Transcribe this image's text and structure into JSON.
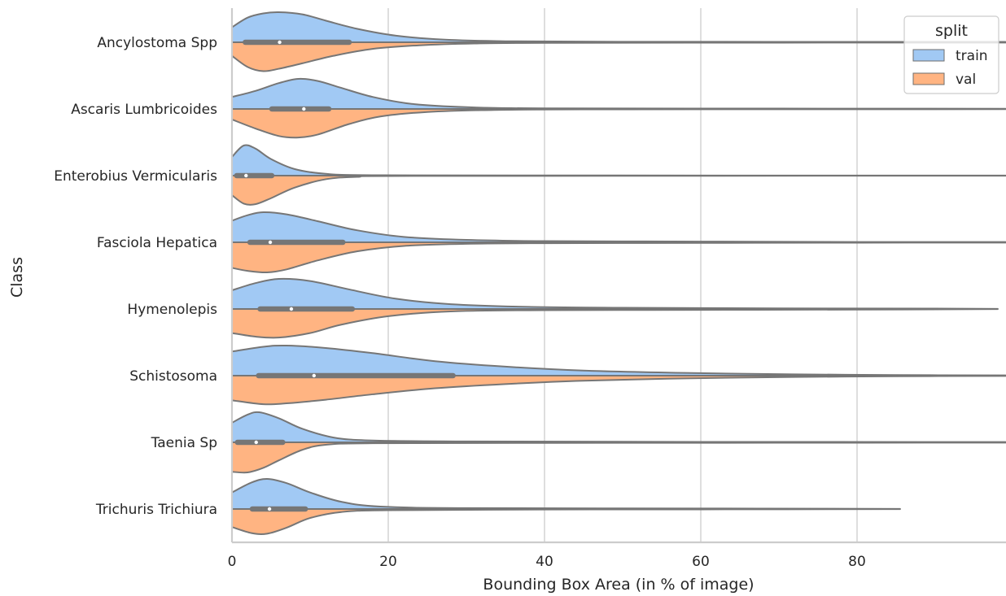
{
  "chart_data": {
    "type": "violin",
    "orientation": "horizontal",
    "split": true,
    "xlabel": "Bounding Box Area (in % of image)",
    "ylabel": "Class",
    "xlim": [
      0,
      99
    ],
    "x_ticks": [
      0,
      20,
      40,
      60,
      80
    ],
    "grid": "vertical",
    "legend": {
      "title": "split",
      "position": "top-right",
      "entries": [
        {
          "name": "train",
          "color": "#a1c9f4"
        },
        {
          "name": "val",
          "color": "#ffb482"
        }
      ]
    },
    "categories": [
      "Ancylostoma Spp",
      "Ascaris Lumbricoides",
      "Enterobius Vermicularis",
      "Fasciola Hepatica",
      "Hymenolepis",
      "Schistosoma",
      "Taenia Sp",
      "Trichuris Trichiura"
    ],
    "series": [
      {
        "name": "train",
        "color": "#a1c9f4",
        "density": [
          [
            [
              0,
              0.5
            ],
            [
              2,
              0.82
            ],
            [
              4,
              0.96
            ],
            [
              6,
              1.0
            ],
            [
              9,
              0.93
            ],
            [
              12,
              0.72
            ],
            [
              16,
              0.45
            ],
            [
              21,
              0.22
            ],
            [
              27,
              0.09
            ],
            [
              35,
              0.035
            ],
            [
              50,
              0.018
            ],
            [
              70,
              0.015
            ],
            [
              99,
              0.012
            ]
          ],
          [
            [
              0,
              0.4
            ],
            [
              3,
              0.6
            ],
            [
              6,
              0.86
            ],
            [
              8.5,
              1.0
            ],
            [
              11,
              0.93
            ],
            [
              14,
              0.7
            ],
            [
              18,
              0.4
            ],
            [
              23,
              0.17
            ],
            [
              30,
              0.06
            ],
            [
              40,
              0.02
            ],
            [
              70,
              0.012
            ],
            [
              99,
              0.008
            ]
          ],
          [
            [
              0,
              0.62
            ],
            [
              1.5,
              1.0
            ],
            [
              3,
              0.9
            ],
            [
              5,
              0.55
            ],
            [
              8,
              0.22
            ],
            [
              12,
              0.06
            ],
            [
              18,
              0.015
            ],
            [
              40,
              0.006
            ],
            [
              99,
              0.004
            ]
          ],
          [
            [
              0,
              0.72
            ],
            [
              2,
              0.9
            ],
            [
              4,
              1.0
            ],
            [
              7,
              0.93
            ],
            [
              11,
              0.7
            ],
            [
              16,
              0.4
            ],
            [
              22,
              0.18
            ],
            [
              30,
              0.08
            ],
            [
              40,
              0.04
            ],
            [
              60,
              0.025
            ],
            [
              80,
              0.01
            ],
            [
              99,
              0.01
            ]
          ],
          [
            [
              0,
              0.62
            ],
            [
              3,
              0.86
            ],
            [
              6,
              1.0
            ],
            [
              10,
              0.93
            ],
            [
              15,
              0.65
            ],
            [
              21,
              0.34
            ],
            [
              28,
              0.16
            ],
            [
              38,
              0.07
            ],
            [
              50,
              0.04
            ],
            [
              70,
              0.02
            ],
            [
              90,
              0.012
            ],
            [
              98,
              0.004
            ]
          ],
          [
            [
              0,
              0.8
            ],
            [
              4,
              0.96
            ],
            [
              7,
              1.0
            ],
            [
              12,
              0.92
            ],
            [
              18,
              0.75
            ],
            [
              26,
              0.48
            ],
            [
              35,
              0.3
            ],
            [
              45,
              0.17
            ],
            [
              58,
              0.09
            ],
            [
              72,
              0.045
            ],
            [
              85,
              0.02
            ],
            [
              99,
              0.01
            ]
          ],
          [
            [
              0,
              0.65
            ],
            [
              2,
              0.92
            ],
            [
              3.5,
              1.0
            ],
            [
              6,
              0.8
            ],
            [
              9,
              0.45
            ],
            [
              13,
              0.16
            ],
            [
              18,
              0.06
            ],
            [
              30,
              0.03
            ],
            [
              60,
              0.015
            ],
            [
              99,
              0.01
            ]
          ],
          [
            [
              0,
              0.55
            ],
            [
              2.5,
              0.88
            ],
            [
              4.5,
              1.0
            ],
            [
              7,
              0.86
            ],
            [
              10,
              0.55
            ],
            [
              14,
              0.24
            ],
            [
              19,
              0.08
            ],
            [
              30,
              0.03
            ],
            [
              60,
              0.018
            ],
            [
              85.5,
              0.004
            ]
          ]
        ],
        "box": [
          {
            "q1": 1.7,
            "median": 6.1,
            "q3": 15.0
          },
          {
            "q1": 5.1,
            "median": 9.2,
            "q3": 12.4
          },
          {
            "q1": 0.6,
            "median": 1.8,
            "q3": 5.1
          },
          {
            "q1": 2.3,
            "median": 4.9,
            "q3": 14.2
          },
          {
            "q1": 3.6,
            "median": 7.6,
            "q3": 15.4
          },
          {
            "q1": 3.4,
            "median": 10.5,
            "q3": 28.3
          },
          {
            "q1": 0.7,
            "median": 3.1,
            "q3": 6.5
          },
          {
            "q1": 2.6,
            "median": 4.8,
            "q3": 9.4
          }
        ]
      },
      {
        "name": "val",
        "color": "#ffb482",
        "density": [
          [
            [
              0,
              0.45
            ],
            [
              2,
              0.82
            ],
            [
              4,
              0.96
            ],
            [
              6,
              0.88
            ],
            [
              9,
              0.7
            ],
            [
              13,
              0.45
            ],
            [
              18,
              0.22
            ],
            [
              24,
              0.1
            ],
            [
              31,
              0.04
            ],
            [
              40,
              0.02
            ],
            [
              70,
              0.012
            ],
            [
              99,
              0.01
            ]
          ],
          [
            [
              0,
              0.35
            ],
            [
              3,
              0.65
            ],
            [
              6,
              0.9
            ],
            [
              8.5,
              0.95
            ],
            [
              11,
              0.85
            ],
            [
              15,
              0.5
            ],
            [
              19,
              0.25
            ],
            [
              25,
              0.1
            ],
            [
              32,
              0.04
            ],
            [
              45,
              0.015
            ],
            [
              99,
              0.008
            ]
          ],
          [
            [
              0,
              0.65
            ],
            [
              1.5,
              0.93
            ],
            [
              3,
              0.95
            ],
            [
              5,
              0.75
            ],
            [
              8,
              0.4
            ],
            [
              12,
              0.12
            ],
            [
              16,
              0.04
            ],
            [
              25,
              0.01
            ],
            [
              99,
              0.004
            ]
          ],
          [
            [
              0,
              0.85
            ],
            [
              2,
              0.95
            ],
            [
              4.5,
              1.0
            ],
            [
              7,
              0.9
            ],
            [
              11,
              0.6
            ],
            [
              16,
              0.3
            ],
            [
              22,
              0.12
            ],
            [
              30,
              0.05
            ],
            [
              40,
              0.03
            ],
            [
              60,
              0.02
            ],
            [
              80,
              0.012
            ],
            [
              99,
              0.01
            ]
          ],
          [
            [
              0,
              0.8
            ],
            [
              3,
              0.92
            ],
            [
              6,
              0.95
            ],
            [
              10,
              0.8
            ],
            [
              14,
              0.52
            ],
            [
              20,
              0.24
            ],
            [
              28,
              0.08
            ],
            [
              40,
              0.04
            ],
            [
              60,
              0.03
            ],
            [
              80,
              0.02
            ],
            [
              98,
              0.004
            ]
          ],
          [
            [
              0,
              0.82
            ],
            [
              4,
              0.95
            ],
            [
              7,
              0.92
            ],
            [
              12,
              0.8
            ],
            [
              18,
              0.62
            ],
            [
              26,
              0.42
            ],
            [
              35,
              0.28
            ],
            [
              45,
              0.17
            ],
            [
              58,
              0.09
            ],
            [
              72,
              0.045
            ],
            [
              85,
              0.02
            ],
            [
              99,
              0.01
            ]
          ],
          [
            [
              0,
              0.98
            ],
            [
              2,
              1.0
            ],
            [
              4,
              0.85
            ],
            [
              6,
              0.6
            ],
            [
              9,
              0.25
            ],
            [
              12,
              0.08
            ],
            [
              18,
              0.03
            ],
            [
              40,
              0.02
            ],
            [
              70,
              0.015
            ],
            [
              99,
              0.01
            ]
          ],
          [
            [
              0,
              0.6
            ],
            [
              2.5,
              0.8
            ],
            [
              4.5,
              0.82
            ],
            [
              7,
              0.62
            ],
            [
              10,
              0.3
            ],
            [
              14,
              0.1
            ],
            [
              20,
              0.04
            ],
            [
              40,
              0.018
            ],
            [
              60,
              0.012
            ],
            [
              85.5,
              0.004
            ]
          ]
        ]
      }
    ]
  }
}
